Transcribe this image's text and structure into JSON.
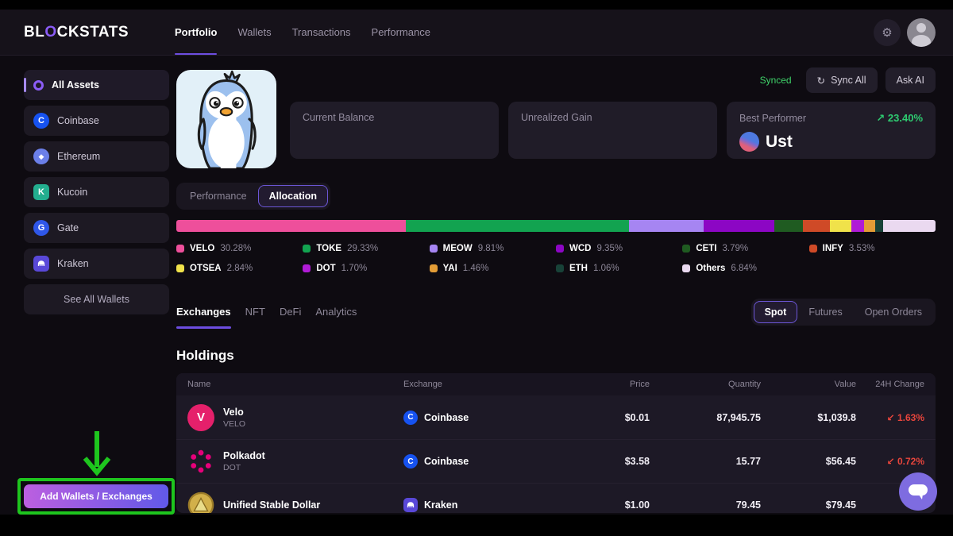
{
  "brand": {
    "prefix": "BL",
    "accent": "O",
    "suffix": "CKSTATS"
  },
  "nav": {
    "items": [
      {
        "label": "Portfolio",
        "active": true
      },
      {
        "label": "Wallets",
        "active": false
      },
      {
        "label": "Transactions",
        "active": false
      },
      {
        "label": "Performance",
        "active": false
      }
    ]
  },
  "sidebar": {
    "items": [
      {
        "label": "All Assets",
        "icon": "all-assets",
        "active": true
      },
      {
        "label": "Coinbase",
        "icon": "coinbase",
        "active": false
      },
      {
        "label": "Ethereum",
        "icon": "ethereum",
        "active": false
      },
      {
        "label": "Kucoin",
        "icon": "kucoin",
        "active": false
      },
      {
        "label": "Gate",
        "icon": "gate",
        "active": false
      },
      {
        "label": "Kraken",
        "icon": "kraken",
        "active": false
      }
    ],
    "see_all_label": "See All Wallets",
    "add_button_label": "Add Wallets / Exchanges"
  },
  "actions": {
    "sync_status": "Synced",
    "sync_all_label": "Sync All",
    "ask_ai_label": "Ask AI"
  },
  "summary_cards": {
    "current_balance_label": "Current Balance",
    "current_balance_value": "",
    "unrealized_gain_label": "Unrealized Gain",
    "unrealized_gain_value": "",
    "best_performer_label": "Best Performer",
    "best_performer_arrow": "↗",
    "best_performer_change": "23.40%",
    "best_performer_asset": "Ust"
  },
  "view_toggle": {
    "options": [
      "Performance",
      "Allocation"
    ],
    "active": "Allocation"
  },
  "chart_data": {
    "type": "bar",
    "variant": "stacked-horizontal-allocation",
    "title": "Portfolio Allocation",
    "categories": [
      "VELO",
      "TOKE",
      "MEOW",
      "WCD",
      "CETI",
      "INFY",
      "OTSEA",
      "DOT",
      "YAI",
      "ETH",
      "Others"
    ],
    "values": [
      30.28,
      29.33,
      9.81,
      9.35,
      3.79,
      3.53,
      2.84,
      1.7,
      1.46,
      1.06,
      6.84
    ],
    "value_labels": [
      "30.28%",
      "29.33%",
      "9.81%",
      "9.35%",
      "3.79%",
      "3.53%",
      "2.84%",
      "1.70%",
      "1.46%",
      "1.06%",
      "6.84%"
    ],
    "colors": [
      "#ee4f9b",
      "#12a350",
      "#a685f2",
      "#8c06c4",
      "#1f5b21",
      "#cf4a27",
      "#f0e24a",
      "#b01bd6",
      "#e39c36",
      "#184238",
      "#ead9f0"
    ],
    "xlim": [
      0,
      100
    ],
    "legend_position": "bottom"
  },
  "section_tabs": {
    "items": [
      {
        "label": "Exchanges",
        "active": true
      },
      {
        "label": "NFT",
        "active": false
      },
      {
        "label": "DeFi",
        "active": false
      },
      {
        "label": "Analytics",
        "active": false
      }
    ]
  },
  "market_toggle": {
    "items": [
      {
        "label": "Spot",
        "active": true
      },
      {
        "label": "Futures",
        "active": false
      },
      {
        "label": "Open Orders",
        "active": false
      }
    ]
  },
  "holdings": {
    "title": "Holdings",
    "columns": [
      "Name",
      "Exchange",
      "Price",
      "Quantity",
      "Value",
      "24H Change"
    ],
    "rows": [
      {
        "name": "Velo",
        "symbol": "VELO",
        "icon": "velo",
        "exchange": "Coinbase",
        "exchange_icon": "coinbase",
        "price": "$0.01",
        "quantity": "87,945.75",
        "value": "$1,039.8",
        "change_arrow": "↙",
        "change_value": "1.63%",
        "change_dir": "down"
      },
      {
        "name": "Polkadot",
        "symbol": "DOT",
        "icon": "polkadot",
        "exchange": "Coinbase",
        "exchange_icon": "coinbase",
        "price": "$3.58",
        "quantity": "15.77",
        "value": "$56.45",
        "change_arrow": "↙",
        "change_value": "0.72%",
        "change_dir": "down"
      },
      {
        "name": "Unified Stable Dollar",
        "symbol": "",
        "icon": "usd-coin",
        "exchange": "Kraken",
        "exchange_icon": "kraken",
        "price": "$1.00",
        "quantity": "79.45",
        "value": "$79.45",
        "change_arrow": "",
        "change_value": "",
        "change_dir": ""
      }
    ]
  },
  "annotation": {
    "color": "#1ec51e"
  }
}
